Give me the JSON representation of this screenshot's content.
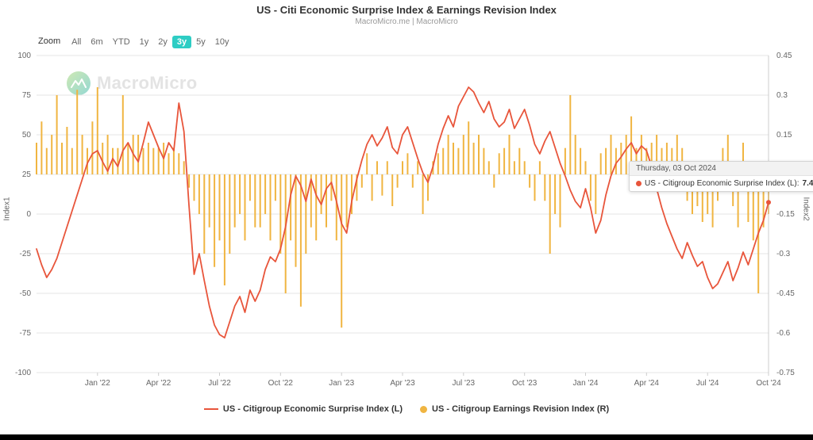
{
  "header": {
    "title": "US - Citi Economic Surprise Index & Earnings Revision Index",
    "subtitle": "MacroMicro.me | MacroMicro"
  },
  "toolbar": {
    "zoom_label": "Zoom",
    "active_color": "#2ecdc4",
    "options": [
      {
        "label": "All",
        "active": false
      },
      {
        "label": "6m",
        "active": false
      },
      {
        "label": "YTD",
        "active": false
      },
      {
        "label": "1y",
        "active": false
      },
      {
        "label": "2y",
        "active": false
      },
      {
        "label": "3y",
        "active": true
      },
      {
        "label": "5y",
        "active": false
      },
      {
        "label": "10y",
        "active": false
      }
    ]
  },
  "watermark": {
    "text": "MacroMicro"
  },
  "tooltip": {
    "date": "Thursday, 03 Oct 2024",
    "label": "US - Citigroup Economic Surprise Index (L):",
    "value": "7.40"
  },
  "legend": {
    "items": [
      {
        "label": "US - Citigroup Economic Surprise Index (L)",
        "color": "#e8553b",
        "type": "line"
      },
      {
        "label": "US - Citigroup Earnings Revision Index (R)",
        "color": "#f0b541",
        "type": "dot"
      }
    ]
  },
  "chart_data": {
    "type": "line+bar",
    "title": "US - Citi Economic Surprise Index & Earnings Revision Index",
    "x_range_note": "weekly points (4 per month) from Oct 2021 to Oct 2024",
    "grid": true,
    "left_axis": {
      "title": "Index1",
      "min": -100,
      "max": 100,
      "ticks": [
        100,
        75,
        50,
        25,
        0,
        -25,
        -50,
        -75,
        -100
      ]
    },
    "right_axis": {
      "title": "Index2",
      "min": -0.75,
      "max": 0.45,
      "ticks": [
        0.45,
        0.3,
        0.15,
        0,
        -0.15,
        -0.3,
        -0.45,
        -0.6,
        -0.75
      ]
    },
    "xticks": [
      {
        "index": 12,
        "label": "Jan '22"
      },
      {
        "index": 24,
        "label": "Apr '22"
      },
      {
        "index": 36,
        "label": "Jul '22"
      },
      {
        "index": 48,
        "label": "Oct '22"
      },
      {
        "index": 60,
        "label": "Jan '23"
      },
      {
        "index": 72,
        "label": "Apr '23"
      },
      {
        "index": 84,
        "label": "Jul '23"
      },
      {
        "index": 96,
        "label": "Oct '23"
      },
      {
        "index": 108,
        "label": "Jan '24"
      },
      {
        "index": 120,
        "label": "Apr '24"
      },
      {
        "index": 132,
        "label": "Jul '24"
      },
      {
        "index": 144,
        "label": "Oct '24"
      }
    ],
    "series": [
      {
        "name": "US - Citigroup Economic Surprise Index (L)",
        "type": "line",
        "axis": "left",
        "color": "#e8553b",
        "values": [
          -22,
          -32,
          -40,
          -35,
          -28,
          -18,
          -8,
          2,
          12,
          22,
          32,
          38,
          40,
          33,
          27,
          35,
          30,
          40,
          45,
          38,
          33,
          45,
          58,
          50,
          42,
          35,
          45,
          40,
          70,
          52,
          5,
          -38,
          -25,
          -42,
          -58,
          -70,
          -76,
          -78,
          -68,
          -58,
          -52,
          -62,
          -48,
          -55,
          -48,
          -35,
          -27,
          -30,
          -22,
          -8,
          12,
          24,
          18,
          8,
          22,
          12,
          6,
          16,
          20,
          8,
          -6,
          -12,
          8,
          22,
          34,
          44,
          50,
          43,
          48,
          55,
          42,
          38,
          50,
          55,
          45,
          35,
          26,
          20,
          30,
          44,
          54,
          62,
          55,
          68,
          74,
          80,
          77,
          70,
          64,
          71,
          60,
          55,
          58,
          66,
          54,
          60,
          66,
          56,
          44,
          38,
          46,
          52,
          42,
          32,
          24,
          15,
          8,
          4,
          16,
          4,
          -12,
          -4,
          12,
          24,
          32,
          36,
          41,
          45,
          38,
          43,
          40,
          30,
          16,
          4,
          -6,
          -14,
          -22,
          -28,
          -18,
          -26,
          -33,
          -30,
          -40,
          -47,
          -44,
          -37,
          -30,
          -42,
          -34,
          -24,
          -32,
          -22,
          -12,
          -4,
          7.4
        ]
      },
      {
        "name": "US - Citigroup Earnings Revision Index (R)",
        "type": "bar",
        "axis": "right",
        "color": "#f0b541",
        "values": [
          0.12,
          0.2,
          0.1,
          0.15,
          0.3,
          0.12,
          0.18,
          0.1,
          0.32,
          0.15,
          0.1,
          0.2,
          0.33,
          0.12,
          0.15,
          0.1,
          0.1,
          0.3,
          0.12,
          0.15,
          0.15,
          0.1,
          0.12,
          0.1,
          0.1,
          0.12,
          0.08,
          0.1,
          0.08,
          0.05,
          -0.05,
          -0.1,
          -0.15,
          -0.3,
          -0.2,
          -0.35,
          -0.25,
          -0.42,
          -0.3,
          -0.2,
          -0.15,
          -0.25,
          -0.1,
          -0.2,
          -0.2,
          -0.15,
          -0.25,
          -0.1,
          -0.3,
          -0.45,
          -0.25,
          -0.35,
          -0.5,
          -0.3,
          -0.2,
          -0.25,
          -0.15,
          -0.2,
          -0.1,
          -0.25,
          -0.58,
          -0.2,
          -0.15,
          -0.1,
          -0.05,
          0.08,
          -0.1,
          0.05,
          -0.08,
          0.05,
          -0.12,
          -0.05,
          0.05,
          0.08,
          -0.05,
          0.05,
          -0.15,
          -0.1,
          0.05,
          0.08,
          0.1,
          0.15,
          0.12,
          0.1,
          0.15,
          0.2,
          0.12,
          0.15,
          0.1,
          0.05,
          -0.05,
          0.08,
          0.1,
          0.15,
          0.05,
          0.1,
          0.05,
          -0.05,
          -0.1,
          0.05,
          -0.1,
          -0.3,
          -0.15,
          -0.2,
          0.1,
          0.3,
          0.15,
          0.1,
          0.05,
          -0.1,
          -0.15,
          0.08,
          0.1,
          0.15,
          0.1,
          0.12,
          0.15,
          0.22,
          0.1,
          0.15,
          0.1,
          0.12,
          0.15,
          0.1,
          0.12,
          0.1,
          0.15,
          0.1,
          -0.1,
          -0.15,
          -0.12,
          -0.18,
          -0.15,
          -0.2,
          -0.1,
          0.1,
          0.15,
          -0.12,
          -0.2,
          0.12,
          -0.18,
          -0.25,
          -0.45,
          -0.2,
          -0.15
        ]
      }
    ],
    "crosshair_index": 144,
    "last_point": {
      "date": "Thursday, 03 Oct 2024",
      "value": 7.4
    }
  }
}
